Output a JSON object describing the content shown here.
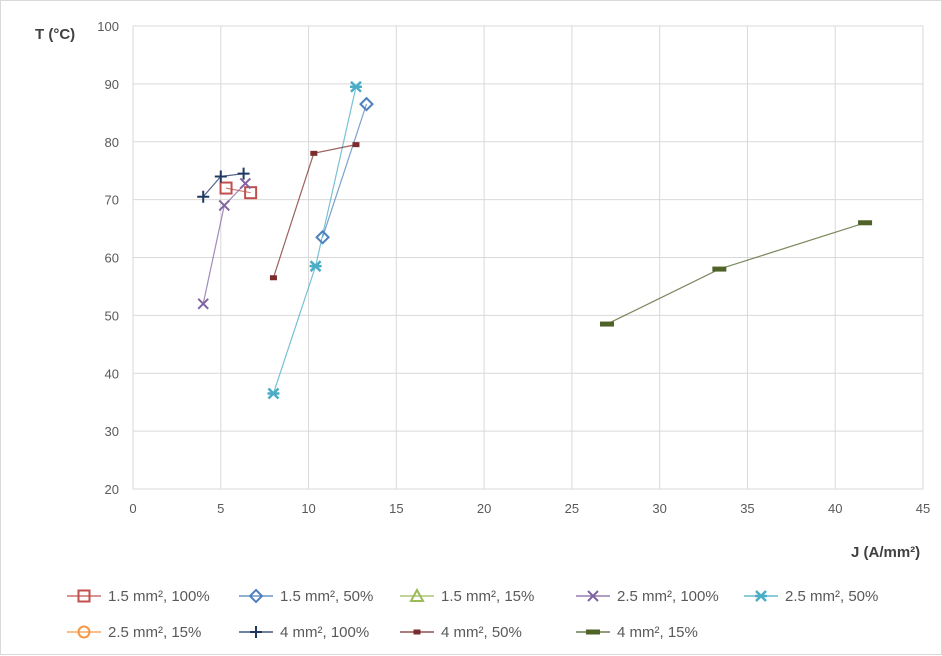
{
  "chart_data": {
    "type": "scatter",
    "xlabel": "J (A/mm²)",
    "ylabel": "T (°C)",
    "xlim": [
      0,
      45
    ],
    "ylim": [
      20,
      100
    ],
    "x_ticks": [
      0,
      5,
      10,
      15,
      20,
      25,
      30,
      35,
      40,
      45
    ],
    "y_ticks": [
      20,
      30,
      40,
      50,
      60,
      70,
      80,
      90,
      100
    ],
    "grid": true,
    "legend_position": "bottom",
    "series": [
      {
        "name": "1.5 mm², 100%",
        "color": "#c0504d",
        "marker": "square",
        "x": [
          5.3,
          6.7
        ],
        "y": [
          72.0,
          71.2
        ]
      },
      {
        "name": "1.5 mm², 50%",
        "color": "#4f81bd",
        "marker": "diamond",
        "x": [
          10.8,
          13.3
        ],
        "y": [
          63.5,
          86.5
        ]
      },
      {
        "name": "1.5 mm², 15%",
        "color": "#9bbb59",
        "marker": "triangle",
        "x": [],
        "y": []
      },
      {
        "name": "2.5 mm², 100%",
        "color": "#8064a2",
        "marker": "x",
        "x": [
          4.0,
          5.2,
          6.4
        ],
        "y": [
          52.0,
          69.0,
          72.8
        ]
      },
      {
        "name": "2.5 mm², 50%",
        "color": "#4bacc6",
        "marker": "star",
        "x": [
          8.0,
          10.4,
          12.7
        ],
        "y": [
          36.5,
          58.5,
          89.5
        ]
      },
      {
        "name": "2.5 mm², 15%",
        "color": "#f79646",
        "marker": "circle",
        "x": [],
        "y": []
      },
      {
        "name": "4 mm², 100%",
        "color": "#1f3864",
        "marker": "plus",
        "x": [
          4.0,
          5.0,
          6.3
        ],
        "y": [
          70.5,
          74.0,
          74.5
        ]
      },
      {
        "name": "4 mm², 50%",
        "color": "#7b2c2c",
        "marker": "short-dash",
        "x": [
          8.0,
          10.3,
          12.7
        ],
        "y": [
          56.5,
          78.0,
          79.5
        ]
      },
      {
        "name": "4 mm², 15%",
        "color": "#4f6228",
        "marker": "dash",
        "x": [
          27.0,
          33.4,
          41.7
        ],
        "y": [
          48.5,
          58.0,
          66.0
        ]
      }
    ]
  }
}
